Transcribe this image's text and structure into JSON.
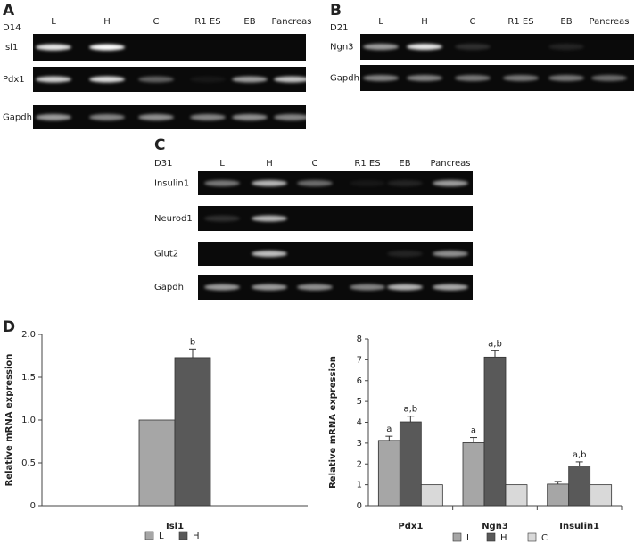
{
  "panels": [
    {
      "label": "A",
      "day": "D14",
      "lanes": [
        "L",
        "H",
        "C",
        "R1 ES",
        "EB",
        "Pancreas"
      ],
      "rows": [
        "Isl1",
        "Pdx1",
        "Gapdh"
      ]
    },
    {
      "label": "B",
      "day": "D21",
      "lanes": [
        "L",
        "H",
        "C",
        "R1 ES",
        "EB",
        "Pancreas"
      ],
      "rows": [
        "Ngn3",
        "Gapdh"
      ]
    },
    {
      "label": "C",
      "day": "D31",
      "lanes": [
        "L",
        "H",
        "C",
        "R1 ES",
        "EB",
        "Pancreas"
      ],
      "rows": [
        "Insulin1",
        "Neurod1",
        "Glut2",
        "Gapdh"
      ]
    }
  ],
  "chart_data": [
    {
      "type": "bar",
      "panel_label": "D",
      "y_label": "Relative mRNA expression",
      "categories": [
        "Isl1"
      ],
      "series": [
        {
          "name": "L",
          "color": "#a6a6a6",
          "values": [
            1
          ]
        },
        {
          "name": "H",
          "color": "#595959",
          "values": [
            1.73
          ],
          "errors": [
            0.1
          ],
          "annotations": [
            "b"
          ]
        }
      ],
      "ylim": [
        0,
        2
      ],
      "yticks": [
        0,
        0.5,
        {
          "value": 1,
          "label": "1.0"
        },
        1.5,
        {
          "value": 2,
          "label": "2.0"
        }
      ]
    },
    {
      "type": "bar",
      "y_label": "Relative mRNA expression",
      "categories": [
        "Pdx1",
        "Ngn3",
        "Insulin1"
      ],
      "series": [
        {
          "name": "L",
          "color": "#a6a6a6",
          "values": [
            3.13,
            3.02,
            1.03
          ],
          "errors": [
            0.2,
            0.25,
            0.13
          ],
          "annotations": [
            "a",
            "a",
            null
          ]
        },
        {
          "name": "H",
          "color": "#595959",
          "values": [
            4.02,
            7.13,
            1.9
          ],
          "errors": [
            0.27,
            0.3,
            0.2
          ],
          "annotations": [
            "a,b",
            "a,b",
            "a,b"
          ]
        },
        {
          "name": "C",
          "color": "#d9d9d9",
          "values": [
            1,
            1,
            1
          ]
        }
      ],
      "ylim": [
        0,
        8
      ],
      "yticks": [
        0,
        1,
        2,
        3,
        4,
        5,
        6,
        7,
        8
      ]
    }
  ]
}
